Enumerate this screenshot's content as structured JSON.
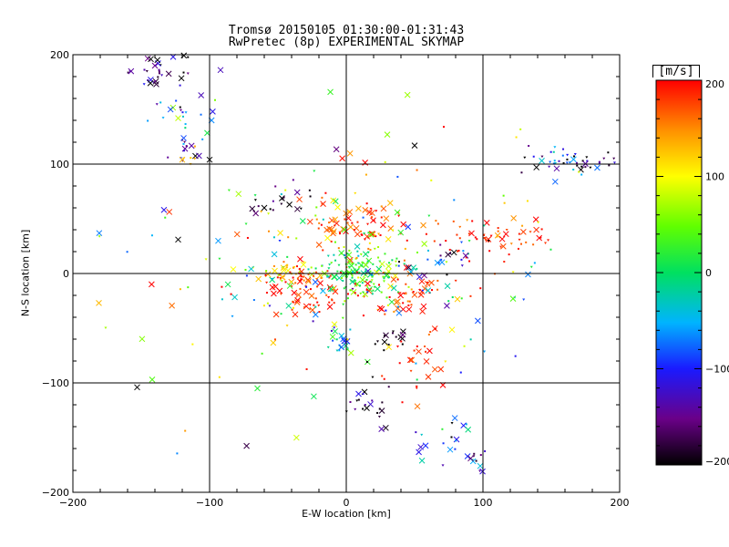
{
  "chart_data": {
    "type": "scatter",
    "title": "Tromsø 20150105 01:30:00-01:31:43",
    "subtitle": "RwPretec (8p) EXPERIMENTAL SKYMAP",
    "xlabel": "E-W location [km]",
    "ylabel": "N-S location [km]",
    "xlim": [
      -200,
      200
    ],
    "ylim": [
      -200,
      200
    ],
    "x_ticks": [
      "−200",
      "−100",
      "0",
      "100",
      "200"
    ],
    "y_ticks": [
      "200",
      "100",
      "0",
      "−100",
      "−200"
    ],
    "grid_lines_x": [
      -100,
      0,
      100
    ],
    "grid_lines_y": [
      -100,
      0,
      100
    ],
    "colorbar": {
      "label": "[m/s]",
      "range": [
        -200,
        200
      ],
      "ticks": [
        "200",
        "100",
        "0",
        "−100",
        "−200"
      ],
      "colormap": "rainbow: black(-200) → purple → blue → cyan → green(0) → yellow → orange → red(200)"
    },
    "marker_types": [
      "x",
      "dot",
      "triangle"
    ],
    "clusters": [
      {
        "x": -138,
        "y": 183,
        "sx": 12,
        "sy": 10,
        "n": 28,
        "v": -170,
        "vs": 40
      },
      {
        "x": -125,
        "y": 150,
        "sx": 12,
        "sy": 12,
        "n": 22,
        "v": -60,
        "vs": 60
      },
      {
        "x": -118,
        "y": 112,
        "sx": 6,
        "sy": 8,
        "n": 12,
        "v": -150,
        "vs": 60
      },
      {
        "x": -115,
        "y": 105,
        "sx": 4,
        "sy": 4,
        "n": 5,
        "v": 120,
        "vs": 20
      },
      {
        "x": 170,
        "y": 102,
        "sx": 18,
        "sy": 6,
        "n": 40,
        "v": -150,
        "vs": 70
      },
      {
        "x": 155,
        "y": 108,
        "sx": 10,
        "sy": 5,
        "n": 10,
        "v": -60,
        "vs": 40
      },
      {
        "x": -50,
        "y": 65,
        "sx": 14,
        "sy": 8,
        "n": 18,
        "v": -190,
        "vs": 20
      },
      {
        "x": -5,
        "y": 42,
        "sx": 10,
        "sy": 8,
        "n": 30,
        "v": 180,
        "vs": 25
      },
      {
        "x": 22,
        "y": 48,
        "sx": 10,
        "sy": 12,
        "n": 35,
        "v": 175,
        "vs": 30
      },
      {
        "x": 110,
        "y": 34,
        "sx": 25,
        "sy": 10,
        "n": 55,
        "v": 185,
        "vs": 20
      },
      {
        "x": 70,
        "y": 15,
        "sx": 18,
        "sy": 8,
        "n": 18,
        "v": -120,
        "vs": 70
      },
      {
        "x": -45,
        "y": 0,
        "sx": 12,
        "sy": 6,
        "n": 40,
        "v": 130,
        "vs": 50
      },
      {
        "x": -25,
        "y": -15,
        "sx": 15,
        "sy": 12,
        "n": 70,
        "v": 185,
        "vs": 20
      },
      {
        "x": 10,
        "y": 2,
        "sx": 15,
        "sy": 12,
        "n": 130,
        "v": 20,
        "vs": 40
      },
      {
        "x": 40,
        "y": -18,
        "sx": 20,
        "sy": 10,
        "n": 50,
        "v": 180,
        "vs": 30
      },
      {
        "x": -8,
        "y": -62,
        "sx": 5,
        "sy": 6,
        "n": 18,
        "v": -20,
        "vs": 40
      },
      {
        "x": 32,
        "y": -55,
        "sx": 8,
        "sy": 6,
        "n": 15,
        "v": -190,
        "vs": 15
      },
      {
        "x": 18,
        "y": -120,
        "sx": 12,
        "sy": 8,
        "n": 20,
        "v": -180,
        "vs": 30
      },
      {
        "x": 75,
        "y": -148,
        "sx": 12,
        "sy": 12,
        "n": 18,
        "v": -80,
        "vs": 60
      },
      {
        "x": 95,
        "y": -170,
        "sx": 6,
        "sy": 6,
        "n": 10,
        "v": -110,
        "vs": 50
      },
      {
        "x": 55,
        "y": -85,
        "sx": 10,
        "sy": 18,
        "n": 22,
        "v": 190,
        "vs": 15
      },
      {
        "x": 0,
        "y": 0,
        "sx": 70,
        "sy": 60,
        "n": 230,
        "v": 60,
        "vs": 120
      }
    ],
    "sample_points": [
      {
        "x": -143,
        "y": 196,
        "v": -200,
        "m": "x"
      },
      {
        "x": -140,
        "y": 190,
        "v": -150,
        "m": "x"
      },
      {
        "x": -139,
        "y": 173,
        "v": -180,
        "m": "x"
      },
      {
        "x": -123,
        "y": 142,
        "v": 80,
        "m": "x"
      },
      {
        "x": -92,
        "y": 186,
        "v": -130,
        "m": "x"
      },
      {
        "x": -120,
        "y": 104,
        "v": 130,
        "m": "x"
      },
      {
        "x": -142,
        "y": -97,
        "v": 40,
        "m": "x"
      },
      {
        "x": -181,
        "y": -27,
        "v": 130,
        "m": "x"
      },
      {
        "x": -153,
        "y": -104,
        "v": -200,
        "m": "x"
      },
      {
        "x": -123,
        "y": 31,
        "v": -200,
        "m": "x"
      },
      {
        "x": -60,
        "y": 60,
        "v": -200,
        "m": "x"
      },
      {
        "x": 122,
        "y": -23,
        "v": 40,
        "m": "x"
      },
      {
        "x": 98,
        "y": -176,
        "v": -40,
        "m": "x"
      },
      {
        "x": 91,
        "y": -169,
        "v": -160,
        "m": "x"
      },
      {
        "x": 76,
        "y": -161,
        "v": -60,
        "m": "x"
      },
      {
        "x": 15,
        "y": -123,
        "v": -200,
        "m": "x"
      },
      {
        "x": 9,
        "y": -110,
        "v": -110,
        "m": "x"
      },
      {
        "x": -65,
        "y": -105,
        "v": 20,
        "m": "x"
      },
      {
        "x": 30,
        "y": 127,
        "v": 60,
        "m": "x"
      },
      {
        "x": 50,
        "y": 117,
        "v": -200,
        "m": "x"
      },
      {
        "x": -100,
        "y": 104,
        "v": -200,
        "m": "x"
      }
    ]
  }
}
